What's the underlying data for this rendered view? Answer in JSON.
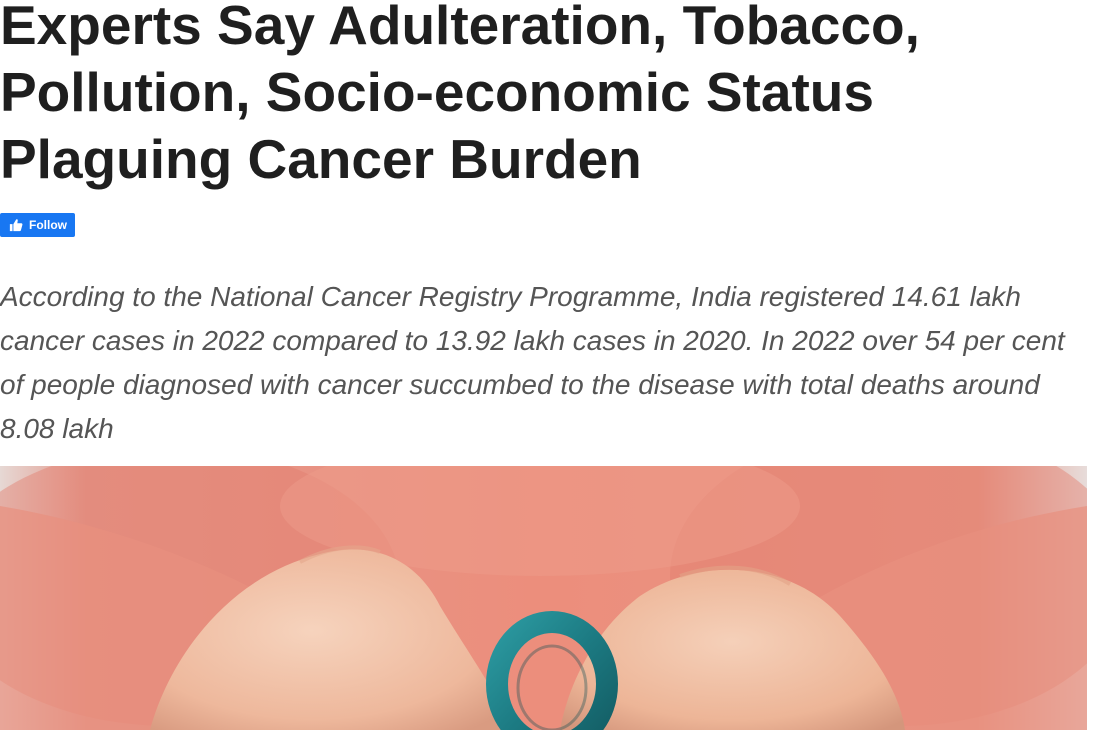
{
  "article": {
    "headline": "Experts Say Adulteration, Tobacco, Pollution, Socio-economic Status Plaguing Cancer Burden",
    "follow_label": "Follow",
    "summary": "According to the National Cancer Registry Programme, India registered 14.61 lakh cancer cases in 2022 compared to 13.92 lakh cases in 2020. In 2022 over 54 per cent of people diagnosed with cancer succumbed to the disease with total deaths around 8.08 lakh"
  },
  "colors": {
    "headline": "#1f1f1f",
    "summary": "#555555",
    "follow_button": "#1877f2",
    "sweater": "#e8897a",
    "skin": "#f0c2a6",
    "ribbon": "#1f7f86"
  },
  "icons": {
    "follow": "thumbs-up-icon"
  }
}
